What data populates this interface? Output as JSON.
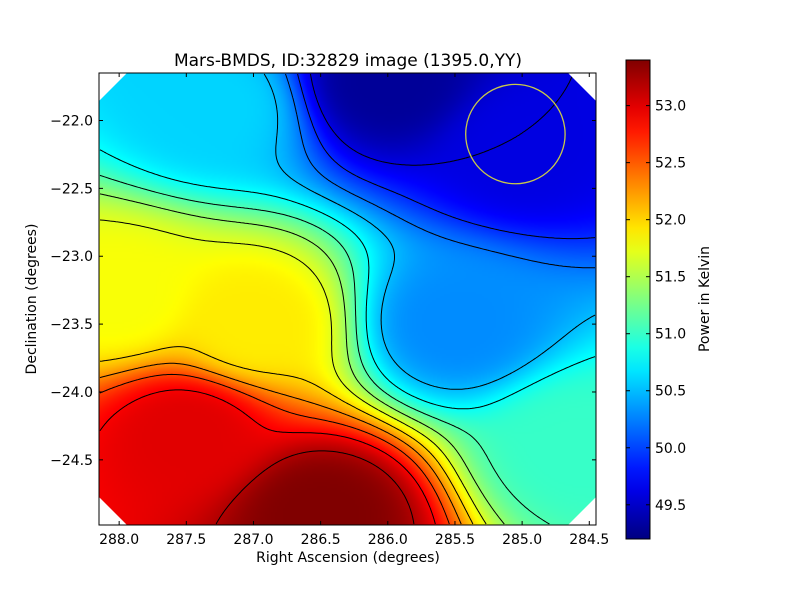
{
  "chart_data": {
    "type": "heatmap",
    "title": "Mars-BMDS, ID:32829 image (1395.0,YY)",
    "xlabel": "Right Ascension (degrees)",
    "ylabel": "Declination (degrees)",
    "colorbar_label": "Power in Kelvin",
    "colormap": "jet",
    "xlim": [
      288.15,
      284.45
    ],
    "ylim": [
      -24.98,
      -21.65
    ],
    "x_reversed": true,
    "x_ticks": [
      288.0,
      287.5,
      287.0,
      286.5,
      286.0,
      285.5,
      285.0,
      284.5
    ],
    "x_tick_labels": [
      "288.0",
      "287.5",
      "287.0",
      "286.5",
      "286.0",
      "285.5",
      "285.0",
      "284.5"
    ],
    "y_ticks": [
      -22.0,
      -22.5,
      -23.0,
      -23.5,
      -24.0,
      -24.5
    ],
    "y_tick_labels": [
      "−22.0",
      "−22.5",
      "−23.0",
      "−23.5",
      "−24.0",
      "−24.5"
    ],
    "color_range": [
      49.2,
      53.4
    ],
    "colorbar_ticks": [
      49.5,
      50.0,
      50.5,
      51.0,
      51.5,
      52.0,
      52.5,
      53.0
    ],
    "colorbar_tick_labels": [
      "49.5",
      "50.0",
      "50.5",
      "51.0",
      "51.5",
      "52.0",
      "52.5",
      "53.0"
    ],
    "contour_levels": [
      49.6,
      49.9,
      50.2,
      50.5,
      50.8,
      51.1,
      51.4,
      51.7,
      52.0,
      52.3,
      52.6,
      52.9,
      53.2
    ],
    "field_samples": [
      {
        "ra": 287.3,
        "dec": -21.9,
        "value": 50.6
      },
      {
        "ra": 286.0,
        "dec": -21.7,
        "value": 49.3
      },
      {
        "ra": 285.0,
        "dec": -22.2,
        "value": 49.6
      },
      {
        "ra": 288.0,
        "dec": -23.3,
        "value": 51.8
      },
      {
        "ra": 287.0,
        "dec": -23.5,
        "value": 51.9
      },
      {
        "ra": 285.5,
        "dec": -23.5,
        "value": 50.3
      },
      {
        "ra": 284.6,
        "dec": -24.4,
        "value": 51.0
      },
      {
        "ra": 287.5,
        "dec": -24.3,
        "value": 53.0
      },
      {
        "ra": 286.5,
        "dec": -24.9,
        "value": 53.4
      }
    ],
    "marker_circle": {
      "ra": 285.05,
      "dec": -22.1,
      "radius_deg": 0.37,
      "color": "#c8c84a"
    },
    "corner_mask": "clipped octagonal coverage region",
    "grid": false
  }
}
